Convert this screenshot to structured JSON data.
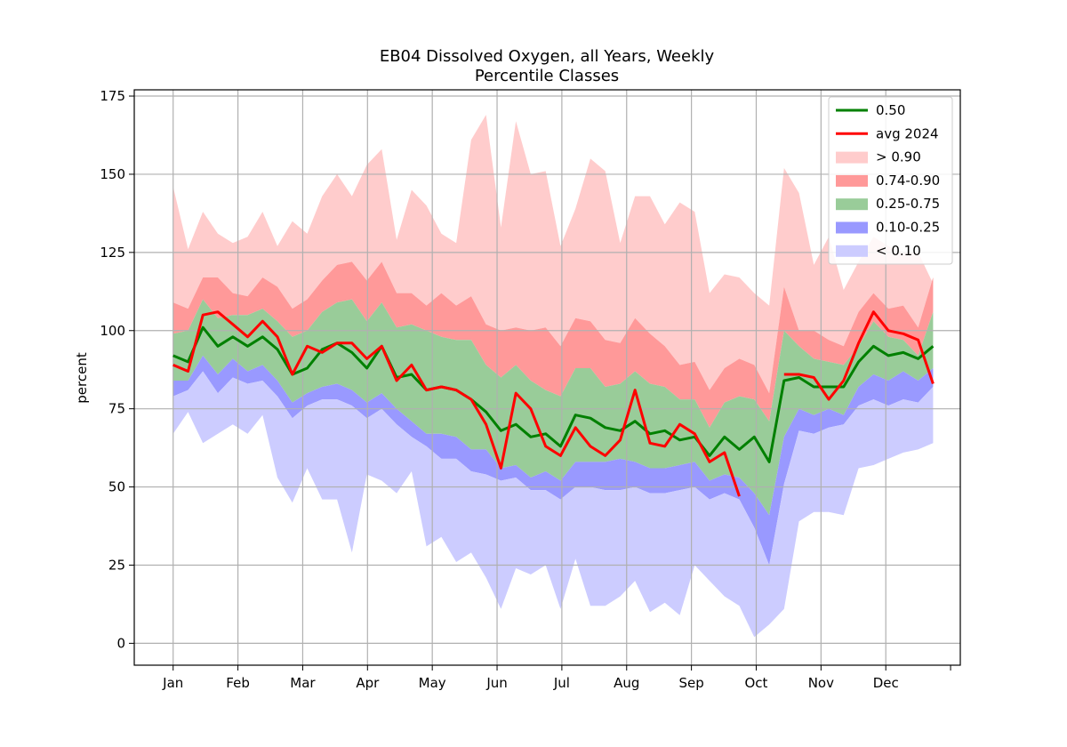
{
  "chart_data": {
    "type": "area",
    "title": "EB04 Dissolved Oxygen, all Years, Weekly",
    "subtitle": "Percentile Classes",
    "ylabel": "percent",
    "xlabel": "",
    "ylim": [
      -7,
      177
    ],
    "xlim": [
      -0.6,
      12.15
    ],
    "grid": true,
    "legend_position": "top-right",
    "month_ticks": [
      "Jan",
      "Feb",
      "Mar",
      "Apr",
      "May",
      "Jun",
      "Jul",
      "Aug",
      "Sep",
      "Oct",
      "Nov",
      "Dec"
    ],
    "y_ticks": [
      "0",
      "25",
      "50",
      "75",
      "100",
      "125",
      "150",
      "175"
    ],
    "x_unit": "month (0 = Jan)",
    "x": [
      0.0,
      0.23,
      0.46,
      0.69,
      0.92,
      1.15,
      1.38,
      1.61,
      1.84,
      2.07,
      2.3,
      2.53,
      2.76,
      2.99,
      3.22,
      3.45,
      3.68,
      3.91,
      4.14,
      4.37,
      4.6,
      4.83,
      5.06,
      5.29,
      5.52,
      5.75,
      5.98,
      6.21,
      6.44,
      6.67,
      6.9,
      7.13,
      7.36,
      7.59,
      7.82,
      8.05,
      8.28,
      8.51,
      8.74,
      8.97,
      9.2,
      9.43,
      9.66,
      9.89,
      10.12,
      10.35,
      10.58,
      10.81,
      11.04,
      11.27,
      11.5,
      11.73
    ],
    "bands": [
      {
        "name": "> 0.90",
        "color": "#ffcccc",
        "upper": [
          146,
          126,
          138,
          131,
          128,
          130,
          138,
          127,
          135,
          131,
          143,
          150,
          143,
          153,
          158,
          129,
          145,
          140,
          131,
          128,
          161,
          169,
          133,
          167,
          150,
          151,
          127,
          139,
          155,
          151,
          128,
          143,
          143,
          134,
          141,
          138,
          112,
          118,
          117,
          112,
          108,
          152,
          144,
          121,
          130,
          113,
          122,
          130,
          127,
          125,
          125,
          115
        ]
      },
      {
        "name": "0.74-0.90",
        "color": "#ff9999",
        "upper": [
          109,
          107,
          117,
          117,
          112,
          111,
          117,
          114,
          107,
          110,
          116,
          121,
          122,
          116,
          122,
          112,
          112,
          108,
          112,
          108,
          111,
          102,
          100,
          101,
          100,
          101,
          95,
          104,
          103,
          97,
          96,
          104,
          99,
          95,
          89,
          90,
          81,
          88,
          91,
          89,
          80,
          114,
          100,
          100,
          97,
          95,
          106,
          112,
          107,
          108,
          101,
          117
        ]
      },
      {
        "name": "0.25-0.75",
        "color": "#99cc99",
        "upper": [
          99,
          100,
          110,
          104,
          105,
          105,
          107,
          103,
          98,
          100,
          106,
          109,
          110,
          103,
          109,
          101,
          102,
          100,
          98,
          97,
          97,
          89,
          85,
          89,
          84,
          81,
          79,
          88,
          88,
          82,
          83,
          87,
          83,
          82,
          78,
          78,
          69,
          77,
          79,
          78,
          71,
          100,
          95,
          91,
          90,
          89,
          95,
          103,
          98,
          97,
          92,
          106
        ]
      },
      {
        "name": "0.10-0.25",
        "color": "#9999ff",
        "upper": [
          84,
          84,
          92,
          86,
          91,
          87,
          89,
          84,
          77,
          80,
          82,
          83,
          81,
          77,
          80,
          75,
          71,
          67,
          67,
          66,
          62,
          62,
          56,
          57,
          53,
          55,
          52,
          58,
          58,
          58,
          59,
          58,
          56,
          56,
          57,
          58,
          52,
          54,
          53,
          48,
          41,
          66,
          75,
          73,
          75,
          73,
          82,
          86,
          84,
          87,
          84,
          88
        ]
      },
      {
        "name": "< 0.10",
        "color": "#ccccff",
        "upper": [
          79,
          81,
          87,
          80,
          85,
          83,
          84,
          79,
          72,
          76,
          78,
          78,
          76,
          72,
          75,
          70,
          66,
          63,
          59,
          59,
          55,
          54,
          52,
          53,
          49,
          49,
          46,
          50,
          50,
          49,
          49,
          50,
          48,
          48,
          49,
          50,
          46,
          48,
          46,
          37,
          25,
          51,
          68,
          67,
          69,
          70,
          76,
          78,
          76,
          78,
          77,
          82
        ],
        "lower": [
          67,
          74,
          64,
          67,
          70,
          67,
          73,
          53,
          45,
          56,
          46,
          46,
          29,
          54,
          52,
          48,
          55,
          31,
          34,
          26,
          29,
          21,
          11,
          24,
          22,
          25,
          11,
          27,
          12,
          12,
          15,
          20,
          10,
          13,
          9,
          25,
          20,
          15,
          12,
          2,
          6,
          11,
          39,
          42,
          42,
          41,
          56,
          57,
          59,
          61,
          62,
          64
        ]
      }
    ],
    "series": [
      {
        "name": "0.50",
        "color": "#008000",
        "values": [
          92,
          90,
          101,
          95,
          98,
          95,
          98,
          94,
          86,
          88,
          94,
          96,
          93,
          88,
          95,
          85,
          86,
          81,
          82,
          81,
          78,
          74,
          68,
          70,
          66,
          67,
          63,
          73,
          72,
          69,
          68,
          71,
          67,
          68,
          65,
          66,
          60,
          66,
          62,
          66,
          58,
          84,
          85,
          82,
          82,
          82,
          90,
          95,
          92,
          93,
          91,
          95
        ]
      },
      {
        "name": "avg 2024",
        "color": "#ff0000",
        "values": [
          89,
          87,
          105,
          106,
          102,
          98,
          103,
          98,
          86,
          95,
          93,
          96,
          96,
          91,
          95,
          84,
          89,
          81,
          82,
          81,
          78,
          70,
          56,
          80,
          75,
          63,
          60,
          69,
          63,
          60,
          65,
          81,
          64,
          63,
          70,
          67,
          58,
          61,
          47,
          null,
          null,
          86,
          86,
          85,
          78,
          84,
          96,
          106,
          100,
          99,
          97,
          83
        ]
      }
    ]
  }
}
